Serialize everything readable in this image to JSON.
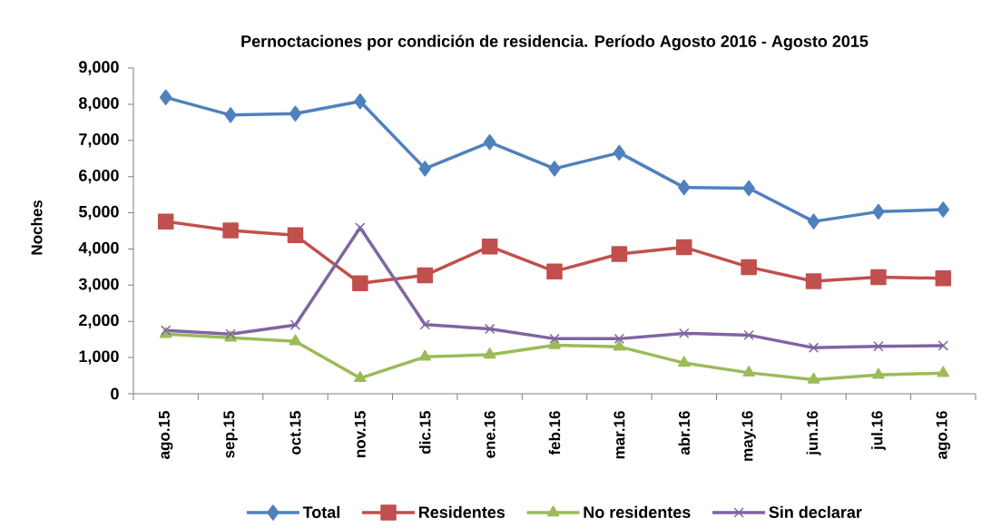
{
  "chart_data": {
    "type": "line",
    "title": "Pernoctaciones por condición de residencia. Período Agosto 2016 - Agosto 2015",
    "ylabel": "Noches",
    "categories": [
      "ago.15",
      "sep.15",
      "oct.15",
      "nov.15",
      "dic.15",
      "ene.16",
      "feb.16",
      "mar.16",
      "abr.16",
      "may.16",
      "jun.16",
      "jul.16",
      "ago.16"
    ],
    "series": [
      {
        "name": "Total",
        "color": "#4f81bd",
        "marker": "diamond",
        "values": [
          8190,
          7700,
          7740,
          8080,
          6220,
          6950,
          6220,
          6660,
          5700,
          5680,
          4760,
          5030,
          5090
        ]
      },
      {
        "name": "Residentes",
        "color": "#c0504d",
        "marker": "square",
        "values": [
          4760,
          4510,
          4380,
          3050,
          3270,
          4070,
          3380,
          3860,
          4050,
          3500,
          3110,
          3220,
          3190
        ]
      },
      {
        "name": "No residentes",
        "color": "#9bbb59",
        "marker": "triangle",
        "values": [
          1650,
          1550,
          1450,
          430,
          1020,
          1080,
          1340,
          1300,
          850,
          580,
          390,
          520,
          570
        ]
      },
      {
        "name": "Sin declarar",
        "color": "#8064a2",
        "marker": "cross",
        "values": [
          1750,
          1650,
          1900,
          4590,
          1910,
          1790,
          1520,
          1520,
          1670,
          1620,
          1270,
          1310,
          1330
        ]
      }
    ],
    "ylim": [
      0,
      9000
    ],
    "yticks": [
      0,
      {
        "value": 1000,
        "label": "1,000"
      },
      {
        "value": 2000,
        "label": "2,000"
      },
      {
        "value": 3000,
        "label": "3,000"
      },
      {
        "value": 4000,
        "label": "4,000"
      },
      {
        "value": 5000,
        "label": "5,000"
      },
      {
        "value": 6000,
        "label": "6,000"
      },
      {
        "value": 7000,
        "label": "7,000"
      },
      {
        "value": 8000,
        "label": "8,000"
      },
      {
        "value": 9000,
        "label": "9,000"
      }
    ],
    "legend": "bottom",
    "line_style": "solid"
  }
}
